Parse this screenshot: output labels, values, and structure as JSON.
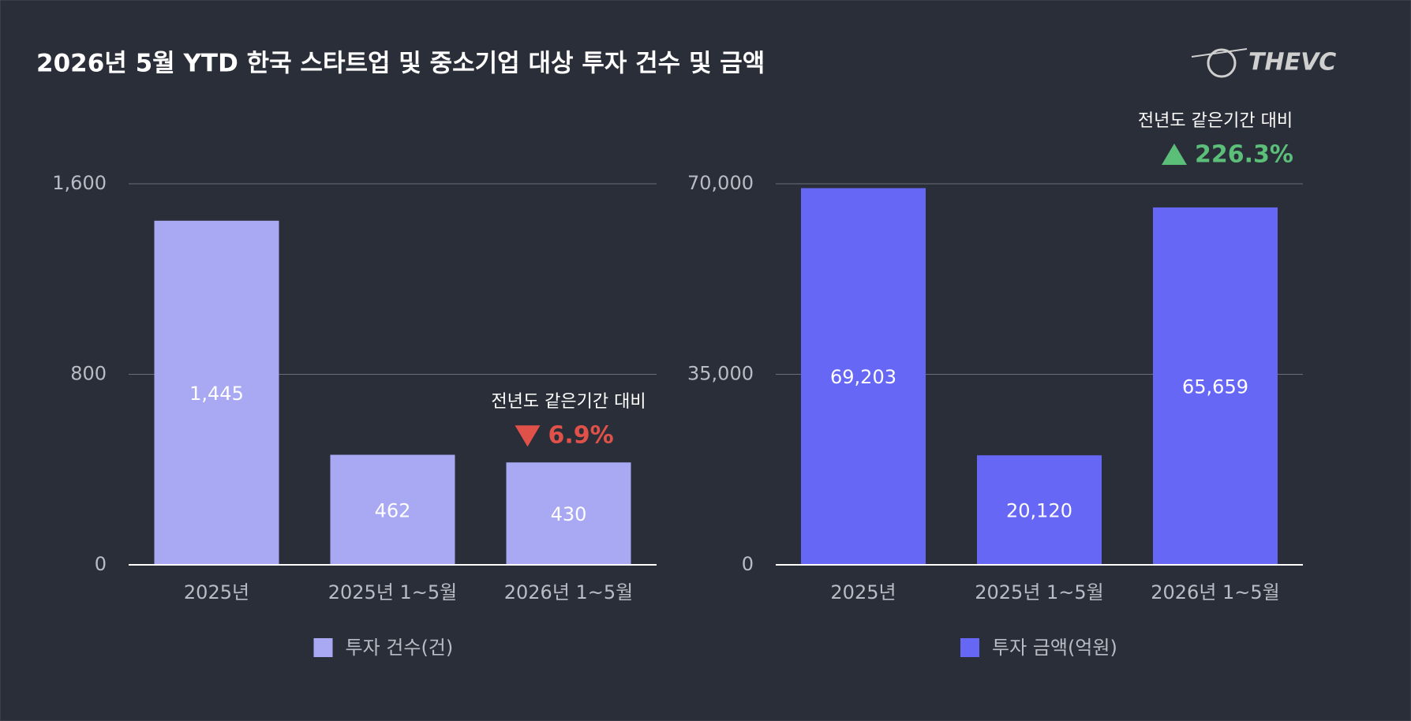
{
  "title": "2026년 5월 YTD 한국 스타트업 및 중소기업 대상 투자 건수 및 금액",
  "logo": "THEVC",
  "chart_data": [
    {
      "type": "bar",
      "categories": [
        "2025년",
        "2025년 1~5월",
        "2026년 1~5월"
      ],
      "series": [
        {
          "name": "투자 건수(건)",
          "color": "#a9a8f3",
          "values": [
            1445,
            462,
            430
          ],
          "value_labels": [
            "1,445",
            "462",
            "430"
          ]
        }
      ],
      "ylim": [
        0,
        1600
      ],
      "yticks": [
        0,
        800,
        {
          "value": 1600,
          "label": "1,600"
        }
      ],
      "grid": true,
      "annotation": {
        "text": "전년도 같은기간 대비",
        "change": "6.9%",
        "direction": "down",
        "color": "#e0514a",
        "category": 2
      }
    },
    {
      "type": "bar",
      "categories": [
        "2025년",
        "2025년 1~5월",
        "2026년 1~5월"
      ],
      "series": [
        {
          "name": "투자 금액(억원)",
          "color": "#6767f5",
          "values": [
            69203,
            20120,
            65659
          ],
          "value_labels": [
            "69,203",
            "20,120",
            "65,659"
          ]
        }
      ],
      "ylim": [
        0,
        70000
      ],
      "yticks": [
        0,
        {
          "value": 35000,
          "label": "35,000"
        },
        {
          "value": 70000,
          "label": "70,000"
        }
      ],
      "grid": true,
      "annotation": {
        "text": "전년도 같은기간 대비",
        "change": "226.3%",
        "direction": "up",
        "color": "#5bbf7a",
        "category": 2
      }
    }
  ]
}
